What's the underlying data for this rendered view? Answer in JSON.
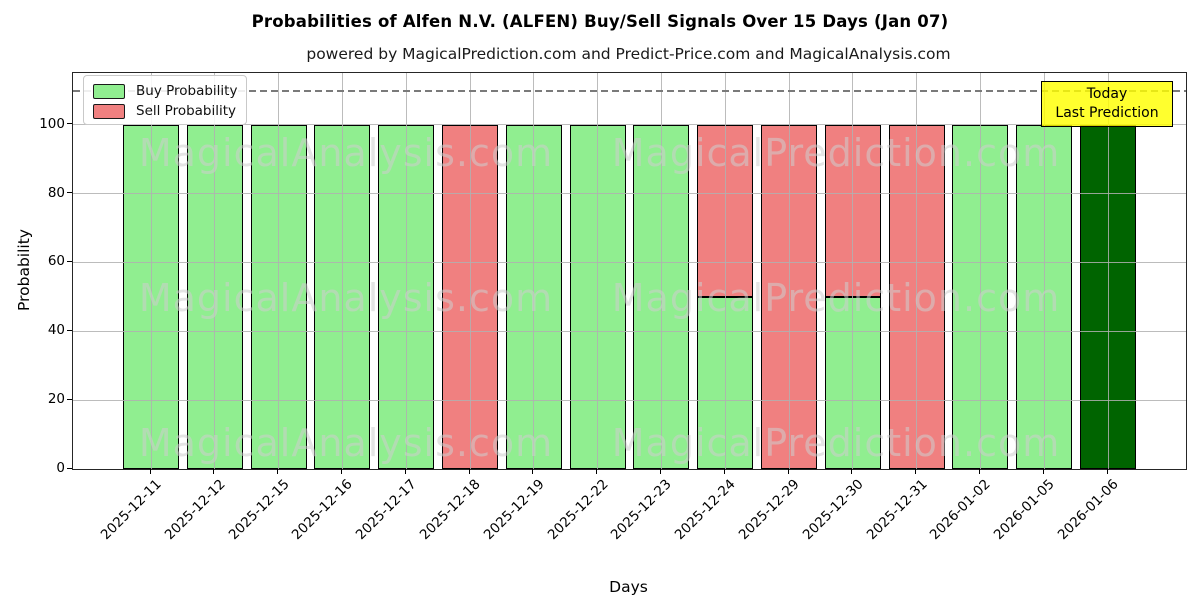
{
  "title": "Probabilities of Alfen N.V. (ALFEN) Buy/Sell Signals Over 15 Days (Jan 07)",
  "subtitle": "powered by MagicalPrediction.com and Predict-Price.com and MagicalAnalysis.com",
  "legend": {
    "items": [
      {
        "label": "Buy Probability",
        "color": "#90ee90"
      },
      {
        "label": "Sell Probability",
        "color": "#f08080"
      }
    ]
  },
  "annotation_box": {
    "lines": [
      "Today",
      "Last Prediction"
    ],
    "bg": "#ffff00"
  },
  "watermarks": {
    "left": "MagicalAnalysis.com",
    "right": "MagicalPrediction.com"
  },
  "chart_data": {
    "type": "bar",
    "stacked": true,
    "title": "Probabilities of Alfen N.V. (ALFEN) Buy/Sell Signals Over 15 Days (Jan 07)",
    "xlabel": "Days",
    "ylabel": "Probability",
    "categories": [
      "2025-12-11",
      "2025-12-12",
      "2025-12-15",
      "2025-12-16",
      "2025-12-17",
      "2025-12-18",
      "2025-12-19",
      "2025-12-22",
      "2025-12-23",
      "2025-12-24",
      "2025-12-29",
      "2025-12-30",
      "2025-12-31",
      "2026-01-02",
      "2026-01-05",
      "2026-01-06"
    ],
    "series": [
      {
        "name": "Buy Probability",
        "color": "#90ee90",
        "values": [
          100,
          100,
          100,
          100,
          100,
          0,
          100,
          100,
          100,
          50,
          0,
          50,
          0,
          100,
          100,
          100
        ]
      },
      {
        "name": "Sell Probability",
        "color": "#f08080",
        "values": [
          0,
          0,
          0,
          0,
          0,
          100,
          0,
          0,
          0,
          50,
          100,
          50,
          100,
          0,
          0,
          0
        ]
      }
    ],
    "today_bar": {
      "category": "2026-01-06",
      "color": "#006400",
      "label": "Today Last Prediction"
    },
    "yticks": [
      0,
      20,
      40,
      60,
      80,
      100
    ],
    "ylim": [
      0,
      115
    ],
    "reference_line_y": 110,
    "reference_line_style": "dashed gray",
    "grid": true,
    "legend_position": "upper left",
    "bar_edge_color": "#000000"
  }
}
